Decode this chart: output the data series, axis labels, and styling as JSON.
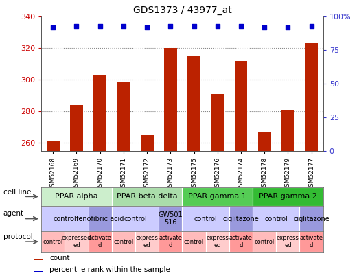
{
  "title": "GDS1373 / 43977_at",
  "samples": [
    "GSM52168",
    "GSM52169",
    "GSM52170",
    "GSM52171",
    "GSM52172",
    "GSM52173",
    "GSM52175",
    "GSM52176",
    "GSM52174",
    "GSM52178",
    "GSM52179",
    "GSM52177"
  ],
  "bar_values": [
    261,
    284,
    303,
    299,
    265,
    320,
    315,
    291,
    312,
    267,
    281,
    323
  ],
  "percentile_values": [
    92,
    93,
    93,
    93,
    92,
    93,
    93,
    93,
    93,
    92,
    92,
    93
  ],
  "ylim_left": [
    255,
    340
  ],
  "ylim_right": [
    0,
    100
  ],
  "yticks_left": [
    260,
    280,
    300,
    320,
    340
  ],
  "yticks_right": [
    0,
    25,
    50,
    75,
    100
  ],
  "bar_color": "#bb2200",
  "dot_color": "#0000cc",
  "grid_color": "#888888",
  "bg_color": "#ffffff",
  "plot_bg_color": "#ffffff",
  "tick_color_left": "#cc0000",
  "tick_color_right": "#3333cc",
  "sample_bg_color": "#cccccc",
  "cell_line_data": [
    {
      "label": "PPAR alpha",
      "start": 0,
      "end": 3,
      "color": "#cceecc"
    },
    {
      "label": "PPAR beta delta",
      "start": 3,
      "end": 6,
      "color": "#aaddaa"
    },
    {
      "label": "PPAR gamma 1",
      "start": 6,
      "end": 9,
      "color": "#55cc55"
    },
    {
      "label": "PPAR gamma 2",
      "start": 9,
      "end": 12,
      "color": "#33bb33"
    }
  ],
  "agent_data": [
    {
      "label": "control",
      "start": 0,
      "end": 2,
      "color": "#ccccff"
    },
    {
      "label": "fenofibric acid",
      "start": 2,
      "end": 3,
      "color": "#9999dd"
    },
    {
      "label": "control",
      "start": 3,
      "end": 5,
      "color": "#ccccff"
    },
    {
      "label": "GW501\n516",
      "start": 5,
      "end": 6,
      "color": "#9999dd"
    },
    {
      "label": "control",
      "start": 6,
      "end": 8,
      "color": "#ccccff"
    },
    {
      "label": "ciglitazone",
      "start": 8,
      "end": 9,
      "color": "#9999dd"
    },
    {
      "label": "control",
      "start": 9,
      "end": 11,
      "color": "#ccccff"
    },
    {
      "label": "ciglitazone",
      "start": 11,
      "end": 12,
      "color": "#9999dd"
    }
  ],
  "protocol_data": [
    {
      "label": "control",
      "start": 0,
      "end": 1,
      "color": "#ffbbbb"
    },
    {
      "label": "expressed\ned",
      "start": 1,
      "end": 2,
      "color": "#ffcccc"
    },
    {
      "label": "activate\nd",
      "start": 2,
      "end": 3,
      "color": "#ff9999"
    },
    {
      "label": "control",
      "start": 3,
      "end": 4,
      "color": "#ffbbbb"
    },
    {
      "label": "express\ned",
      "start": 4,
      "end": 5,
      "color": "#ffcccc"
    },
    {
      "label": "activate\nd",
      "start": 5,
      "end": 6,
      "color": "#ff9999"
    },
    {
      "label": "control",
      "start": 6,
      "end": 7,
      "color": "#ffbbbb"
    },
    {
      "label": "express\ned",
      "start": 7,
      "end": 8,
      "color": "#ffcccc"
    },
    {
      "label": "activate\nd",
      "start": 8,
      "end": 9,
      "color": "#ff9999"
    },
    {
      "label": "control",
      "start": 9,
      "end": 10,
      "color": "#ffbbbb"
    },
    {
      "label": "express\ned",
      "start": 10,
      "end": 11,
      "color": "#ffcccc"
    },
    {
      "label": "activate\nd",
      "start": 11,
      "end": 12,
      "color": "#ff9999"
    }
  ],
  "row_labels": [
    "cell line",
    "agent",
    "protocol"
  ],
  "legend_items": [
    {
      "label": "count",
      "color": "#bb2200"
    },
    {
      "label": "percentile rank within the sample",
      "color": "#0000cc"
    }
  ]
}
